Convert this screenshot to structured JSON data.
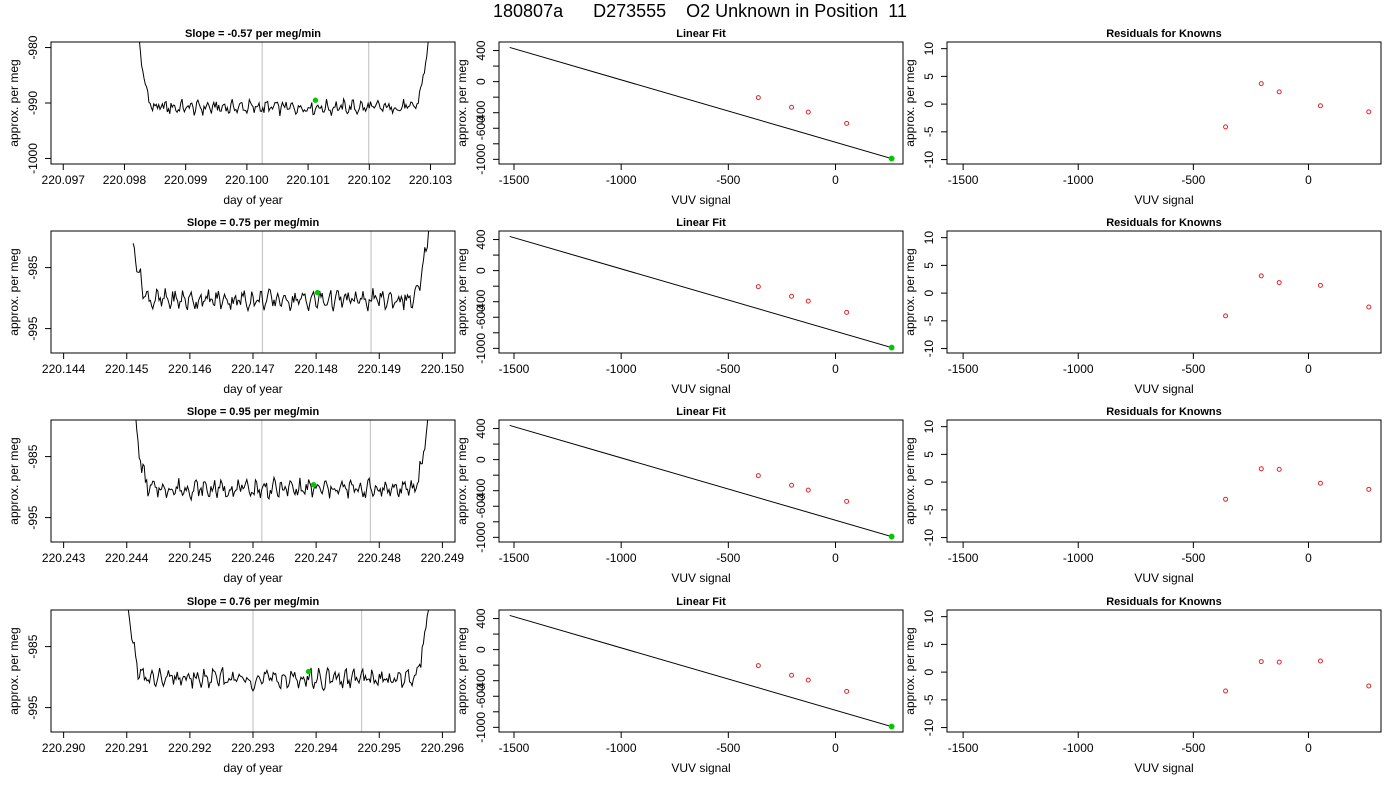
{
  "page": {
    "title": "180807a      D273555    O2 Unknown in Position  11"
  },
  "colors": {
    "trace": "#000000",
    "window_line": "#c8c8c8",
    "marker": "#00c800",
    "known_points": "#e0262c",
    "fit_line": "#000000"
  },
  "chart_data": [
    {
      "type": "line",
      "panel": "time-series-1",
      "title": "Slope =  -0.57  per meg/min",
      "xlabel": "day of year",
      "ylabel": "approx. per meg",
      "xlim": [
        220.0968,
        220.1034
      ],
      "ylim": [
        -1001,
        -979
      ],
      "xticks": [
        220.097,
        220.098,
        220.099,
        220.1,
        220.101,
        220.102,
        220.103
      ],
      "xtick_labels": [
        "220.097",
        "220.098",
        "220.099",
        "220.100",
        "220.101",
        "220.102",
        "220.103"
      ],
      "yticks": [
        -1000,
        -990,
        -980
      ],
      "ytick_labels": [
        "-1000",
        "-990",
        "-980"
      ],
      "trace_x_range": [
        220.0982,
        220.103
      ],
      "trace_base": -990.8,
      "trace_amplitude": 1.6,
      "trace_edge_start": -975,
      "trace_edge_end": -975,
      "window_lines_x": [
        220.10025,
        220.10199
      ],
      "marker": {
        "x": 220.10112,
        "y": -989.5
      }
    },
    {
      "type": "scatter",
      "panel": "linear-fit-1",
      "title": "Linear Fit",
      "xlabel": "VUV signal",
      "ylabel": "approx. per meg",
      "xlim": [
        -1570,
        315
      ],
      "ylim": [
        -1060,
        510
      ],
      "xticks": [
        -1500,
        -1000,
        -500,
        0
      ],
      "xtick_labels": [
        "-1500",
        "-1000",
        "-500",
        "0"
      ],
      "yticks": [
        -1000,
        -800,
        -600,
        -400,
        -200,
        0,
        200,
        400
      ],
      "ytick_labels": [
        "-1000",
        "",
        "-600",
        "-400",
        "",
        "0",
        "",
        "400"
      ],
      "fit_line": {
        "x": [
          -1520,
          268
        ],
        "y": [
          440,
          -995
        ]
      },
      "known_points": {
        "x": [
          -360,
          -205,
          -127,
          52
        ],
        "y": [
          -206,
          -330,
          -393,
          -537
        ]
      },
      "unknown_point": {
        "x": 262,
        "y": -990
      }
    },
    {
      "type": "scatter",
      "panel": "residuals-1",
      "title": "Residuals for Knowns",
      "xlabel": "VUV signal",
      "ylabel": "approx. per meg",
      "xlim": [
        -1570,
        315
      ],
      "ylim": [
        -10.8,
        11.2
      ],
      "xticks": [
        -1500,
        -1000,
        -500,
        0
      ],
      "xtick_labels": [
        "-1500",
        "-1000",
        "-500",
        "0"
      ],
      "yticks": [
        -10,
        -5,
        0,
        5,
        10
      ],
      "ytick_labels": [
        "-10",
        "-5",
        "0",
        "5",
        "10"
      ],
      "points": {
        "x": [
          -360,
          -205,
          -127,
          52,
          262
        ],
        "y": [
          -4.1,
          3.7,
          2.2,
          -0.3,
          -1.4
        ]
      }
    },
    {
      "type": "line",
      "panel": "time-series-2",
      "title": "Slope =  0.75  per meg/min",
      "xlabel": "day of year",
      "ylabel": "approx. per meg",
      "xlim": [
        220.1438,
        220.1502
      ],
      "ylim": [
        -999,
        -979
      ],
      "xticks": [
        220.144,
        220.145,
        220.146,
        220.147,
        220.148,
        220.149,
        220.15
      ],
      "xtick_labels": [
        "220.144",
        "220.145",
        "220.146",
        "220.147",
        "220.148",
        "220.149",
        "220.150"
      ],
      "yticks": [
        -995,
        -985
      ],
      "ytick_labels": [
        "-995",
        "-985"
      ],
      "trace_x_range": [
        220.1451,
        220.1498
      ],
      "trace_base": -990.3,
      "trace_amplitude": 2.0,
      "trace_edge_start": -980.5,
      "trace_edge_end": -977,
      "window_lines_x": [
        220.14715,
        220.14887
      ],
      "marker": {
        "x": 220.14802,
        "y": -989.1
      }
    },
    {
      "type": "scatter",
      "panel": "linear-fit-2",
      "title": "Linear Fit",
      "xlabel": "VUV signal",
      "ylabel": "approx. per meg",
      "xlim": [
        -1570,
        315
      ],
      "ylim": [
        -1060,
        510
      ],
      "xticks": [
        -1500,
        -1000,
        -500,
        0
      ],
      "xtick_labels": [
        "-1500",
        "-1000",
        "-500",
        "0"
      ],
      "yticks": [
        -1000,
        -800,
        -600,
        -400,
        -200,
        0,
        200,
        400
      ],
      "ytick_labels": [
        "-1000",
        "",
        "-600",
        "-400",
        "",
        "0",
        "",
        "400"
      ],
      "fit_line": {
        "x": [
          -1520,
          268
        ],
        "y": [
          440,
          -995
        ]
      },
      "known_points": {
        "x": [
          -360,
          -205,
          -127,
          52
        ],
        "y": [
          -206,
          -330,
          -393,
          -537
        ]
      },
      "unknown_point": {
        "x": 262,
        "y": -990
      }
    },
    {
      "type": "scatter",
      "panel": "residuals-2",
      "title": "Residuals for Knowns",
      "xlabel": "VUV signal",
      "ylabel": "approx. per meg",
      "xlim": [
        -1570,
        315
      ],
      "ylim": [
        -10.8,
        11.2
      ],
      "xticks": [
        -1500,
        -1000,
        -500,
        0
      ],
      "xtick_labels": [
        "-1500",
        "-1000",
        "-500",
        "0"
      ],
      "yticks": [
        -10,
        -5,
        0,
        5,
        10
      ],
      "ytick_labels": [
        "-10",
        "-5",
        "0",
        "5",
        "10"
      ],
      "points": {
        "x": [
          -360,
          -205,
          -127,
          52,
          262
        ],
        "y": [
          -4.1,
          3.1,
          1.9,
          1.4,
          -2.5
        ]
      }
    },
    {
      "type": "line",
      "panel": "time-series-3",
      "title": "Slope =  0.95  per meg/min",
      "xlabel": "day of year",
      "ylabel": "approx. per meg",
      "xlim": [
        220.2428,
        220.2492
      ],
      "ylim": [
        -999,
        -979
      ],
      "xticks": [
        220.243,
        220.244,
        220.245,
        220.246,
        220.247,
        220.248,
        220.249
      ],
      "xtick_labels": [
        "220.243",
        "220.244",
        "220.245",
        "220.246",
        "220.247",
        "220.248",
        "220.249"
      ],
      "yticks": [
        -995,
        -985
      ],
      "ytick_labels": [
        "-995",
        "-985"
      ],
      "trace_x_range": [
        220.2441,
        220.2488
      ],
      "trace_base": -990.3,
      "trace_amplitude": 1.9,
      "trace_edge_start": -976,
      "trace_edge_end": -976,
      "window_lines_x": [
        220.24614,
        220.24786
      ],
      "marker": {
        "x": 220.24696,
        "y": -989.6
      }
    },
    {
      "type": "scatter",
      "panel": "linear-fit-3",
      "title": "Linear Fit",
      "xlabel": "VUV signal",
      "ylabel": "approx. per meg",
      "xlim": [
        -1570,
        315
      ],
      "ylim": [
        -1060,
        510
      ],
      "xticks": [
        -1500,
        -1000,
        -500,
        0
      ],
      "xtick_labels": [
        "-1500",
        "-1000",
        "-500",
        "0"
      ],
      "yticks": [
        -1000,
        -800,
        -600,
        -400,
        -200,
        0,
        200,
        400
      ],
      "ytick_labels": [
        "-1000",
        "",
        "-600",
        "-400",
        "",
        "0",
        "",
        "400"
      ],
      "fit_line": {
        "x": [
          -1520,
          268
        ],
        "y": [
          440,
          -995
        ]
      },
      "known_points": {
        "x": [
          -360,
          -205,
          -127,
          52
        ],
        "y": [
          -206,
          -330,
          -393,
          -537
        ]
      },
      "unknown_point": {
        "x": 262,
        "y": -990
      }
    },
    {
      "type": "scatter",
      "panel": "residuals-3",
      "title": "Residuals for Knowns",
      "xlabel": "VUV signal",
      "ylabel": "approx. per meg",
      "xlim": [
        -1570,
        315
      ],
      "ylim": [
        -10.8,
        11.2
      ],
      "xticks": [
        -1500,
        -1000,
        -500,
        0
      ],
      "xtick_labels": [
        "-1500",
        "-1000",
        "-500",
        "0"
      ],
      "yticks": [
        -10,
        -5,
        0,
        5,
        10
      ],
      "ytick_labels": [
        "-10",
        "-5",
        "0",
        "5",
        "10"
      ],
      "points": {
        "x": [
          -360,
          -205,
          -127,
          52,
          262
        ],
        "y": [
          -3.1,
          2.4,
          2.3,
          -0.2,
          -1.3
        ]
      }
    },
    {
      "type": "line",
      "panel": "time-series-4",
      "title": "Slope =  0.76  per meg/min",
      "xlabel": "day of year",
      "ylabel": "approx. per meg",
      "xlim": [
        220.2898,
        220.2962
      ],
      "ylim": [
        -999,
        -979
      ],
      "xticks": [
        220.29,
        220.291,
        220.292,
        220.293,
        220.294,
        220.295,
        220.296
      ],
      "xtick_labels": [
        "220.290",
        "220.291",
        "220.292",
        "220.293",
        "220.294",
        "220.295",
        "220.296"
      ],
      "yticks": [
        -995,
        -985
      ],
      "ytick_labels": [
        "-995",
        "-985"
      ],
      "trace_x_range": [
        220.291,
        220.2958
      ],
      "trace_base": -990.3,
      "trace_amplitude": 2.0,
      "trace_edge_start": -977,
      "trace_edge_end": -977,
      "window_lines_x": [
        220.293,
        220.29472
      ],
      "marker": {
        "x": 220.29388,
        "y": -989.1
      }
    },
    {
      "type": "scatter",
      "panel": "linear-fit-4",
      "title": "Linear Fit",
      "xlabel": "VUV signal",
      "ylabel": "approx. per meg",
      "xlim": [
        -1570,
        315
      ],
      "ylim": [
        -1060,
        510
      ],
      "xticks": [
        -1500,
        -1000,
        -500,
        0
      ],
      "xtick_labels": [
        "-1500",
        "-1000",
        "-500",
        "0"
      ],
      "yticks": [
        -1000,
        -800,
        -600,
        -400,
        -200,
        0,
        200,
        400
      ],
      "ytick_labels": [
        "-1000",
        "",
        "-600",
        "-400",
        "",
        "0",
        "",
        "400"
      ],
      "fit_line": {
        "x": [
          -1520,
          268
        ],
        "y": [
          440,
          -995
        ]
      },
      "known_points": {
        "x": [
          -360,
          -205,
          -127,
          52
        ],
        "y": [
          -206,
          -330,
          -393,
          -537
        ]
      },
      "unknown_point": {
        "x": 262,
        "y": -990
      }
    },
    {
      "type": "scatter",
      "panel": "residuals-4",
      "title": "Residuals for Knowns",
      "xlabel": "VUV signal",
      "ylabel": "approx. per meg",
      "xlim": [
        -1570,
        315
      ],
      "ylim": [
        -10.8,
        11.2
      ],
      "xticks": [
        -1500,
        -1000,
        -500,
        0
      ],
      "xtick_labels": [
        "-1500",
        "-1000",
        "-500",
        "0"
      ],
      "yticks": [
        -10,
        -5,
        0,
        5,
        10
      ],
      "points": {
        "x": [
          -360,
          -205,
          -127,
          52,
          262
        ],
        "y": [
          -3.4,
          1.9,
          1.8,
          2.0,
          -2.5
        ]
      },
      "ytick_labels": [
        "-10",
        "-5",
        "0",
        "5",
        "10"
      ]
    }
  ]
}
